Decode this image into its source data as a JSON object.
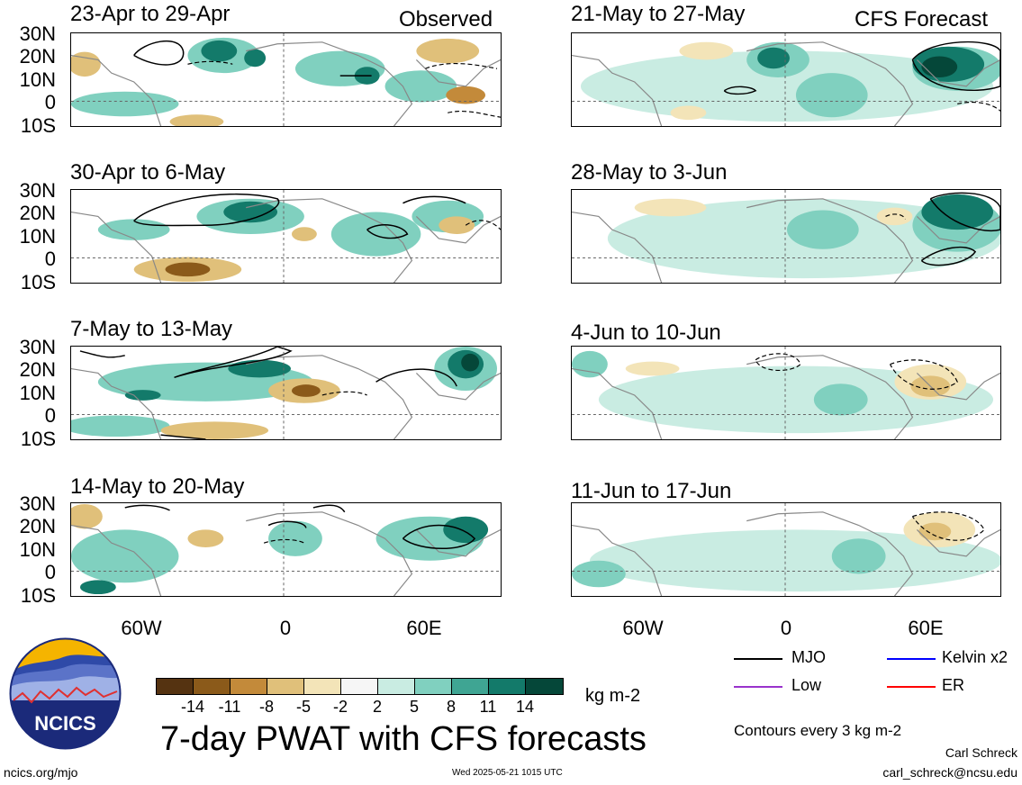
{
  "header": {
    "observed_label": "Observed",
    "forecast_label": "CFS Forecast"
  },
  "observed_panels": [
    {
      "title": "23-Apr to 29-Apr"
    },
    {
      "title": "30-Apr to 6-May"
    },
    {
      "title": "7-May to 13-May"
    },
    {
      "title": "14-May to 20-May"
    }
  ],
  "forecast_panels": [
    {
      "title": "21-May to 27-May"
    },
    {
      "title": "28-May to 3-Jun"
    },
    {
      "title": "4-Jun to 10-Jun"
    },
    {
      "title": "11-Jun to 17-Jun"
    }
  ],
  "lat_labels": [
    "30N",
    "20N",
    "10N",
    "0",
    "10S"
  ],
  "lon_labels": [
    "60W",
    "0",
    "60E"
  ],
  "colorbar": {
    "unit": "kg m-2",
    "ticks": [
      "-14",
      "-11",
      "-8",
      "-5",
      "-2",
      "2",
      "5",
      "8",
      "11",
      "14"
    ],
    "colors": [
      "#553311",
      "#8b5a1a",
      "#c38a3a",
      "#e0c07a",
      "#f3e4b8",
      "#f6f6f6",
      "#c9ece2",
      "#80d0bf",
      "#3fa593",
      "#137a6a",
      "#054739"
    ]
  },
  "legend": {
    "items": [
      {
        "label": "MJO",
        "color": "#000000"
      },
      {
        "label": "Kelvin x2",
        "color": "#0000ff"
      },
      {
        "label": "Low",
        "color": "#9933cc"
      },
      {
        "label": "ER",
        "color": "#ff0000"
      }
    ],
    "note": "Contours every 3 kg m-2"
  },
  "title": "7-day PWAT with CFS forecasts",
  "logo_text": "NCICS",
  "footer": {
    "site": "ncics.org/mjo",
    "timestamp": "Wed 2025-05-21 1015 UTC",
    "author": "Carl Schreck",
    "email": "carl_schreck@ncsu.edu"
  }
}
